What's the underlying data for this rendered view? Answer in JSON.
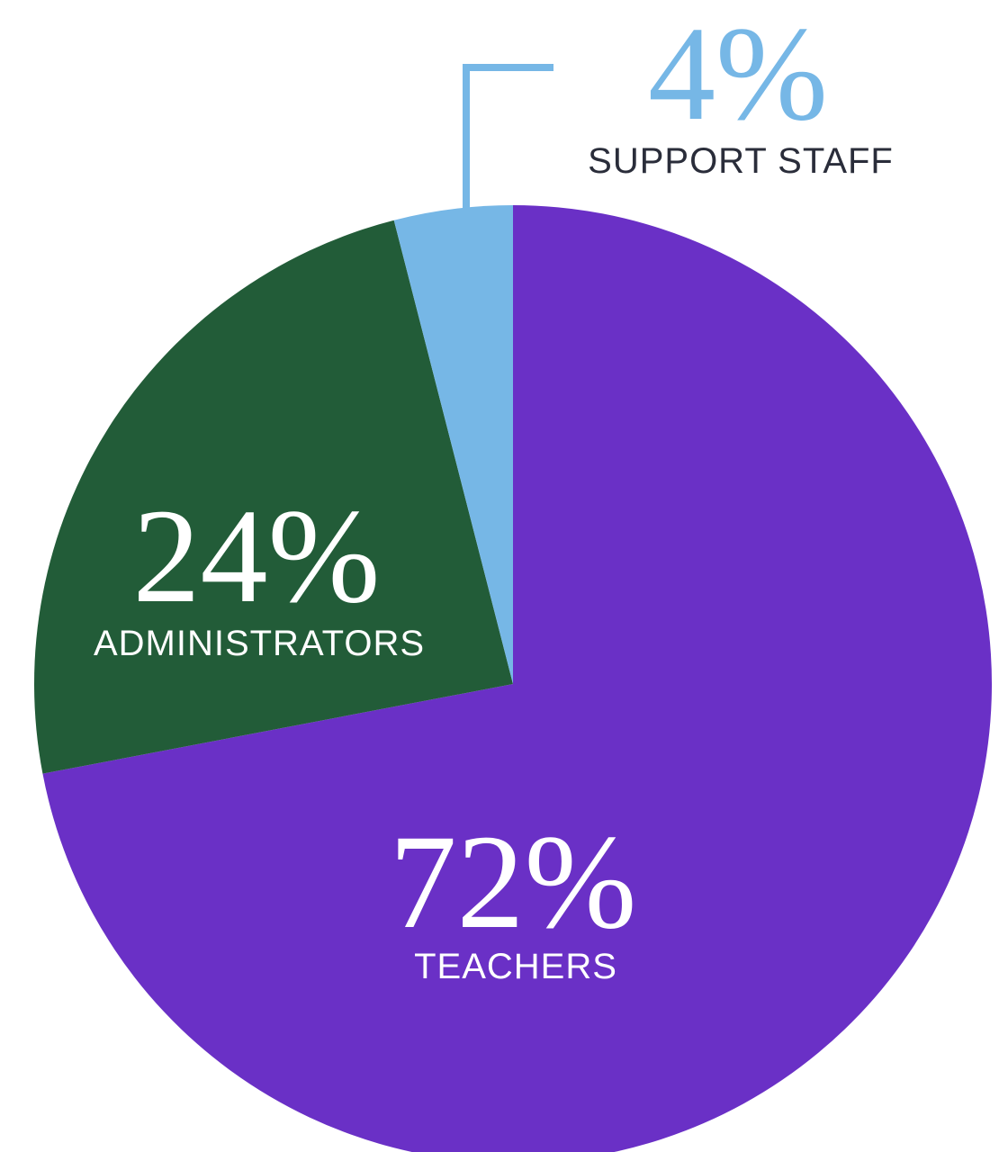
{
  "chart_data": {
    "type": "pie",
    "categories": [
      "TEACHERS",
      "ADMINISTRATORS",
      "SUPPORT STAFF"
    ],
    "values": [
      72,
      24,
      4
    ],
    "value_labels": [
      "72%",
      "24%",
      "4%"
    ],
    "colors": [
      "#6a30c6",
      "#225c38",
      "#76b7e6"
    ]
  }
}
